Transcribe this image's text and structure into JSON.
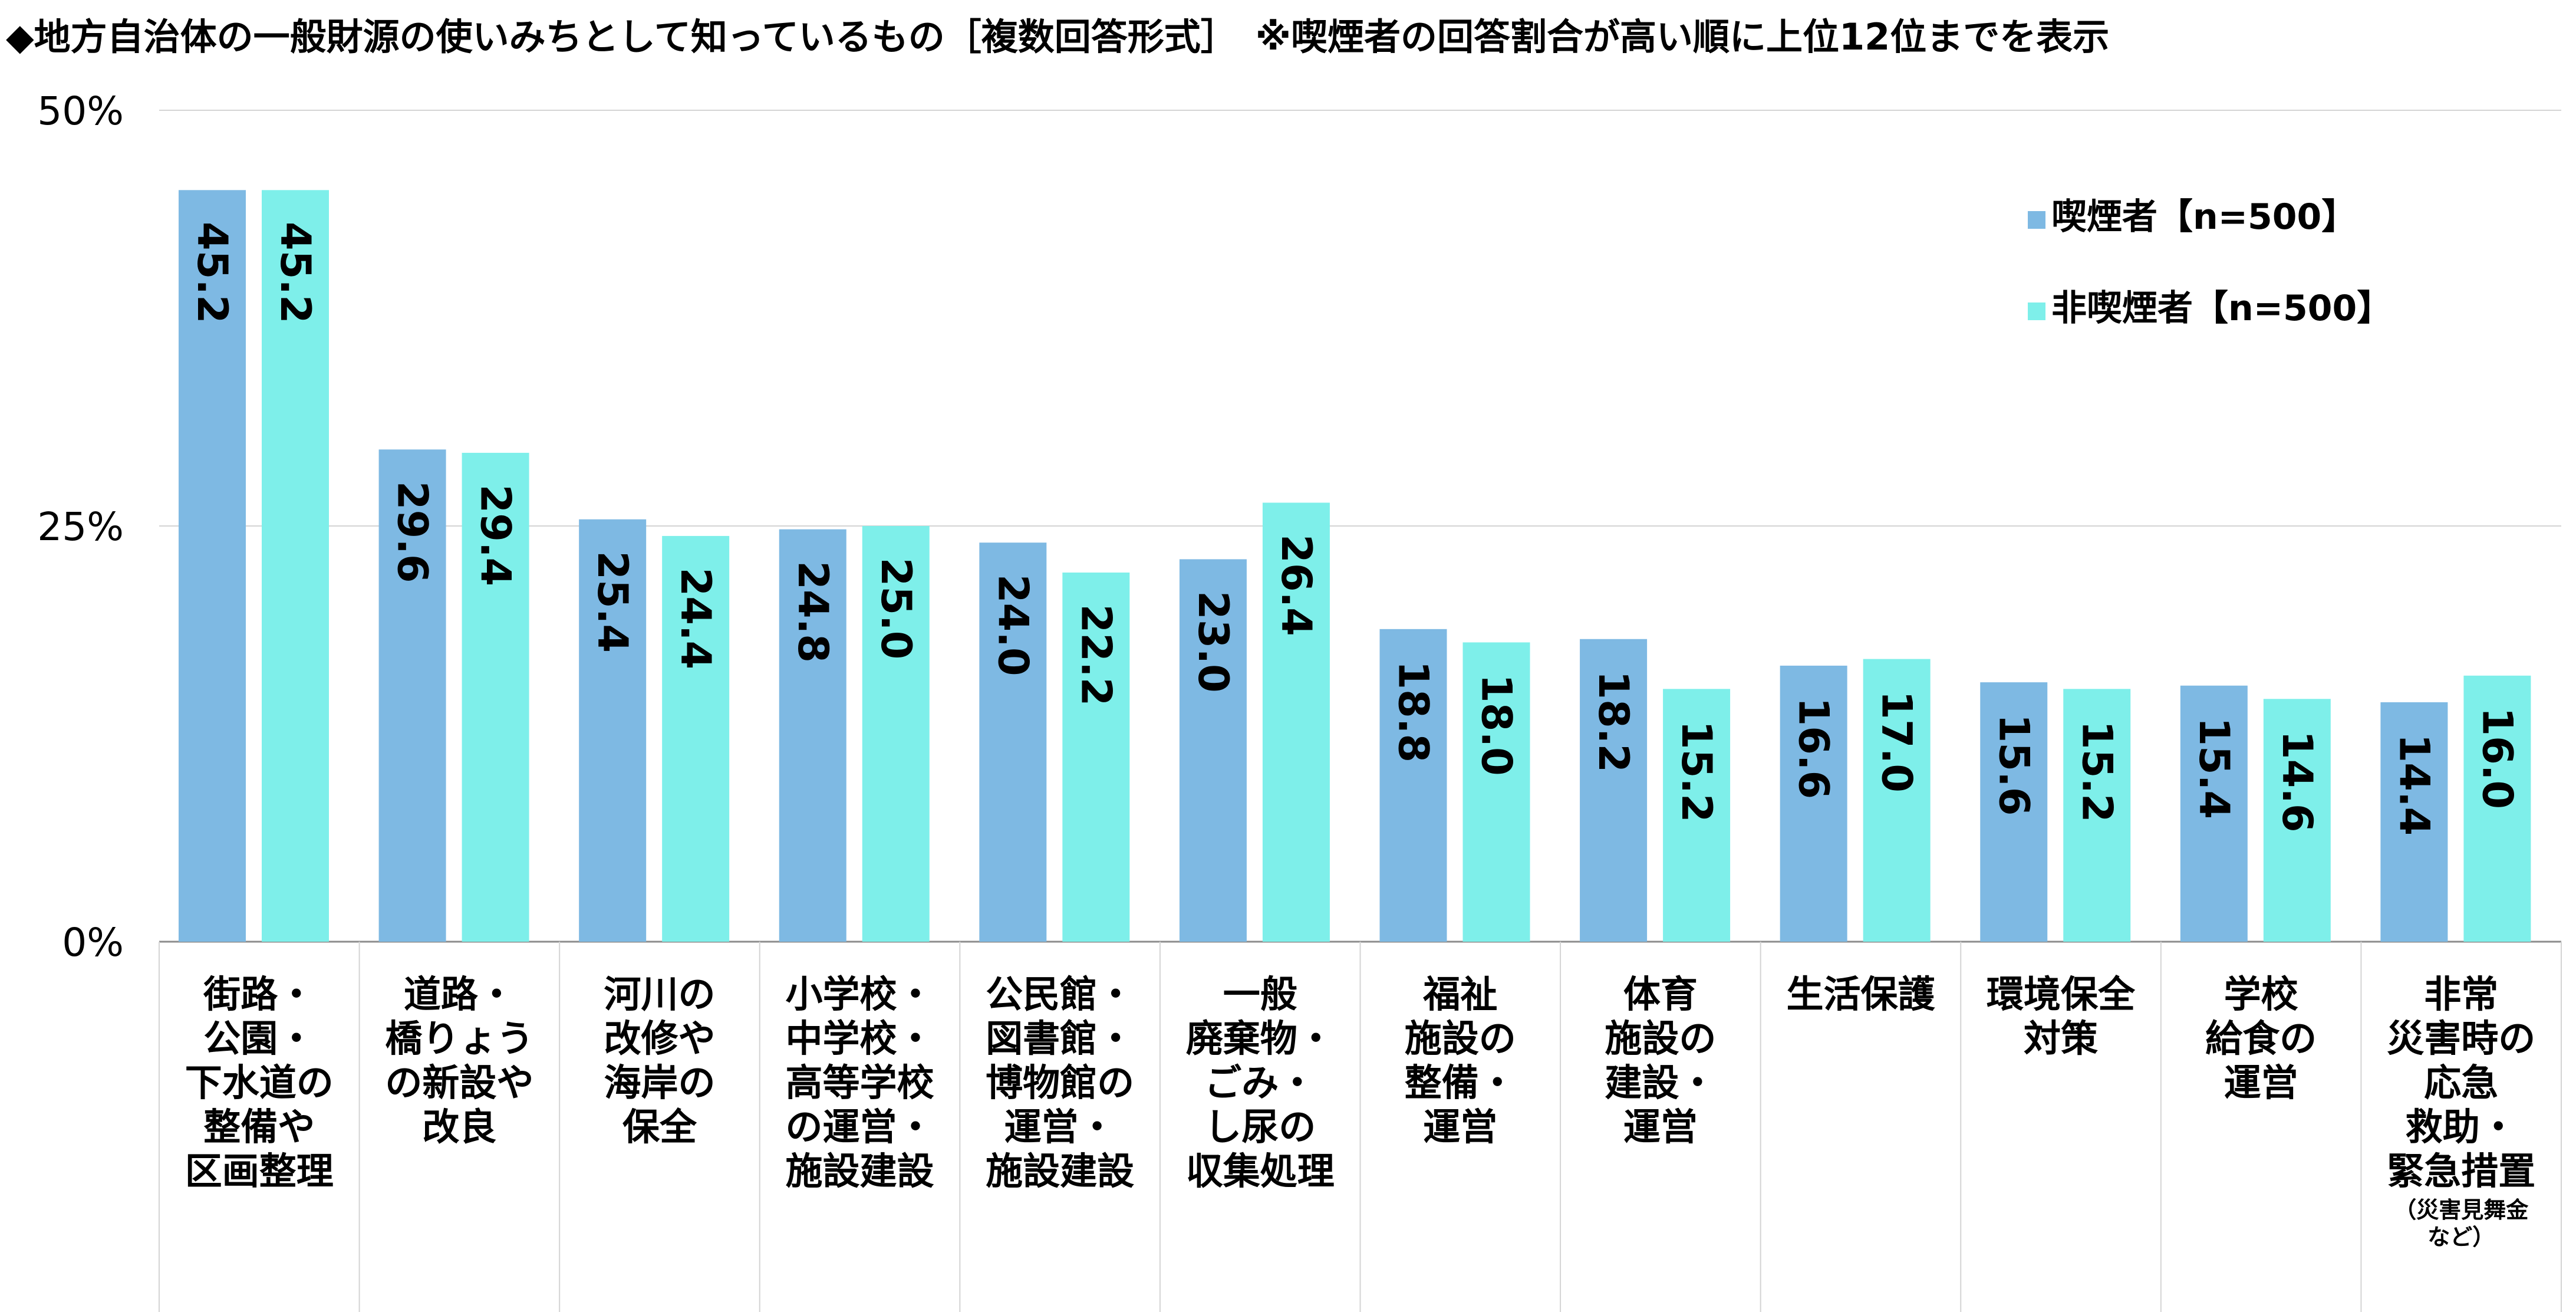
{
  "chart_data": {
    "type": "bar",
    "title": "◆地方自治体の一般財源の使いみちとして知っているもの［複数回答形式］　※喫煙者の回答割合が高い順に上位12位までを表示",
    "xlabel": "",
    "ylabel": "",
    "ylim": [
      0,
      50
    ],
    "yticks": [
      "0%",
      "25%",
      "50%"
    ],
    "ytick_values": [
      0,
      25,
      50
    ],
    "grid": true,
    "legend_position": "top-right",
    "categories": [
      "街路・公園・下水道の整備や区画整理",
      "道路・橋りょうの新設や改良",
      "河川の改修や海岸の保全",
      "小学校・中学校・高等学校の運営・施設建設",
      "公民館・図書館・博物館の運営・施設建設",
      "一般廃棄物・ごみ・し尿の収集処理",
      "福祉施設の整備・運営",
      "体育施設の建設・運営",
      "生活保護",
      "環境保全対策",
      "学校給食の運営",
      "非常災害時の応急救助・緊急措置（災害見舞金など）"
    ],
    "category_lines": [
      [
        "街路・",
        "公園・",
        "下水道の",
        "整備や",
        "区画整理"
      ],
      [
        "道路・",
        "橋りょう",
        "の新設や",
        "改良"
      ],
      [
        "河川の",
        "改修や",
        "海岸の",
        "保全"
      ],
      [
        "小学校・",
        "中学校・",
        "高等学校",
        "の運営・",
        "施設建設"
      ],
      [
        "公民館・",
        "図書館・",
        "博物館の",
        "運営・",
        "施設建設"
      ],
      [
        "一般",
        "廃棄物・",
        "ごみ・",
        "し尿の",
        "収集処理"
      ],
      [
        "福祉",
        "施設の",
        "整備・",
        "運営"
      ],
      [
        "体育",
        "施設の",
        "建設・",
        "運営"
      ],
      [
        "生活保護"
      ],
      [
        "環境保全",
        "対策"
      ],
      [
        "学校",
        "給食の",
        "運営"
      ],
      [
        "非常",
        "災害時の",
        "応急",
        "救助・",
        "緊急措置"
      ]
    ],
    "category_notes": [
      "",
      "",
      "",
      "",
      "",
      "",
      "",
      "",
      "",
      "",
      "",
      "（災害見舞金など）"
    ],
    "category_note_lines": [
      [],
      [],
      [],
      [],
      [],
      [],
      [],
      [],
      [],
      [],
      [],
      [
        "（災害見舞金",
        "など）"
      ]
    ],
    "series": [
      {
        "name": "喫煙者【n=500】",
        "color": "#7eb9e3",
        "values": [
          45.2,
          29.6,
          25.4,
          24.8,
          24.0,
          23.0,
          18.8,
          18.2,
          16.6,
          15.6,
          15.4,
          14.4
        ],
        "labels": [
          "45.2",
          "29.6",
          "25.4",
          "24.8",
          "24.0",
          "23.0",
          "18.8",
          "18.2",
          "16.6",
          "15.6",
          "15.4",
          "14.4"
        ]
      },
      {
        "name": "非喫煙者【n=500】",
        "color": "#7eefea",
        "values": [
          45.2,
          29.4,
          24.4,
          25.0,
          22.2,
          26.4,
          18.0,
          15.2,
          17.0,
          15.2,
          14.6,
          16.0
        ],
        "labels": [
          "45.2",
          "29.4",
          "24.4",
          "25.0",
          "22.2",
          "26.4",
          "18.0",
          "15.2",
          "17.0",
          "15.2",
          "14.6",
          "16.0"
        ]
      }
    ]
  }
}
